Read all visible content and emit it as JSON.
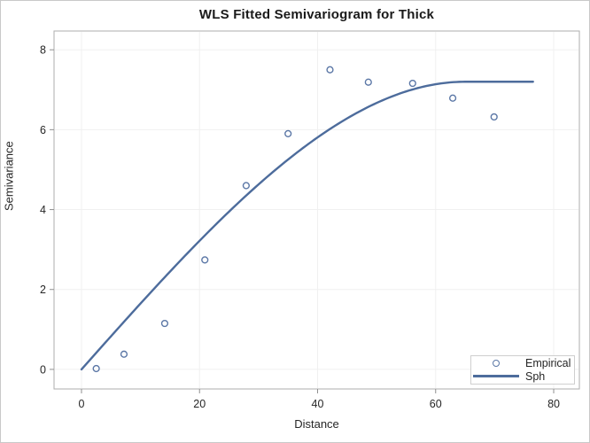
{
  "window": {
    "title": "WLS Fitted Semivariogram for Thick"
  },
  "chart_data": {
    "type": "scatter",
    "title": "WLS Fitted Semivariogram for Thick",
    "xlabel": "Distance",
    "ylabel": "Semivariance",
    "x_ticks": [
      0,
      20,
      40,
      60,
      80
    ],
    "y_ticks": [
      0,
      2,
      4,
      6,
      8
    ],
    "xlim": [
      -4.65,
      84.35
    ],
    "ylim": [
      -0.49,
      8.47
    ],
    "grid": true,
    "legend_position": "bottom-right",
    "series": [
      {
        "name": "Empirical",
        "type": "scatter",
        "marker": "open-circle",
        "color": "#5b77a6",
        "x": [
          2.5,
          7.2,
          14.1,
          20.9,
          27.9,
          35.0,
          42.1,
          48.6,
          56.1,
          62.9,
          69.9
        ],
        "y": [
          0.02,
          0.38,
          1.15,
          2.74,
          4.6,
          5.9,
          7.5,
          7.19,
          7.16,
          6.79,
          6.32
        ]
      },
      {
        "name": "Sph",
        "type": "line",
        "color": "#4d6c9c",
        "model": "spherical",
        "nugget": 0,
        "sill": 7.2,
        "range": 65,
        "x_start": 0,
        "x_end": 76.5
      }
    ]
  },
  "legend": {
    "entries": [
      {
        "label": "Empirical",
        "swatch": "circle"
      },
      {
        "label": "Sph",
        "swatch": "line"
      }
    ]
  },
  "colors": {
    "line": "#4d6c9c",
    "marker": "#5b77a6",
    "grid": "#f0f0f0",
    "wall_border": "#adadad",
    "figure_border": "#c9c9c9",
    "tick": "#8f8f8f",
    "text": "#262626"
  }
}
